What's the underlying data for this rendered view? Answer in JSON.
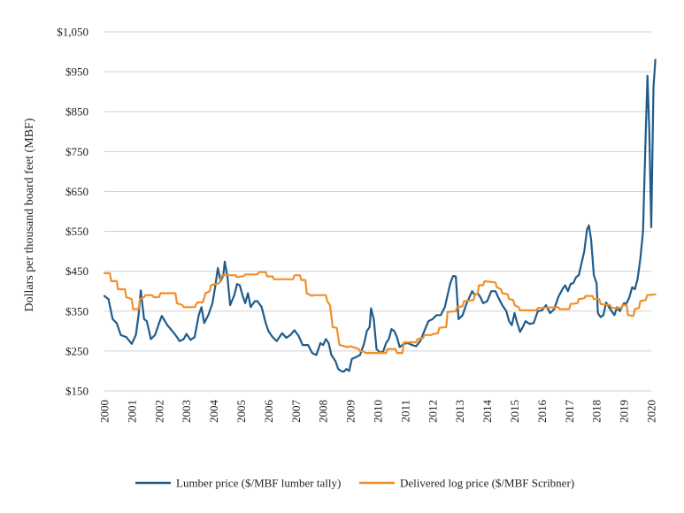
{
  "chart_data": {
    "type": "line",
    "title": "",
    "xlabel": "",
    "ylabel": "Dollars per thousand board feet (MBF)",
    "xlim": [
      2000,
      2020
    ],
    "ylim": [
      150,
      1050
    ],
    "yticks": [
      150,
      250,
      350,
      450,
      550,
      650,
      750,
      850,
      950,
      1050
    ],
    "ytick_labels": [
      "$150",
      "$250",
      "$350",
      "$450",
      "$550",
      "$650",
      "$750",
      "$850",
      "$950",
      "$1,050"
    ],
    "xticks": [
      2000,
      2001,
      2002,
      2003,
      2004,
      2005,
      2006,
      2007,
      2008,
      2009,
      2010,
      2011,
      2012,
      2013,
      2014,
      2015,
      2016,
      2017,
      2018,
      2019,
      2020
    ],
    "xtick_labels": [
      "2000",
      "2001",
      "2002",
      "2003",
      "2004",
      "2005",
      "2006",
      "2007",
      "2008",
      "2009",
      "2010",
      "2011",
      "2012",
      "2013",
      "2014",
      "2015",
      "2016",
      "2017",
      "2018",
      "2019",
      "2020"
    ],
    "grid": "horizontal",
    "legend_position": "bottom",
    "series": [
      {
        "name": "Lumber price ($/MBF lumber tally)",
        "color": "#1f5c8b",
        "points": [
          [
            2000.0,
            388
          ],
          [
            2000.15,
            380
          ],
          [
            2000.3,
            330
          ],
          [
            2000.45,
            320
          ],
          [
            2000.6,
            290
          ],
          [
            2000.8,
            285
          ],
          [
            2001.0,
            268
          ],
          [
            2001.15,
            290
          ],
          [
            2001.25,
            340
          ],
          [
            2001.33,
            402
          ],
          [
            2001.45,
            330
          ],
          [
            2001.55,
            325
          ],
          [
            2001.7,
            280
          ],
          [
            2001.85,
            290
          ],
          [
            2002.0,
            320
          ],
          [
            2002.1,
            338
          ],
          [
            2002.3,
            315
          ],
          [
            2002.45,
            303
          ],
          [
            2002.6,
            290
          ],
          [
            2002.75,
            275
          ],
          [
            2002.9,
            280
          ],
          [
            2003.0,
            293
          ],
          [
            2003.15,
            278
          ],
          [
            2003.3,
            285
          ],
          [
            2003.45,
            340
          ],
          [
            2003.55,
            360
          ],
          [
            2003.65,
            320
          ],
          [
            2003.8,
            340
          ],
          [
            2003.95,
            370
          ],
          [
            2004.05,
            410
          ],
          [
            2004.15,
            458
          ],
          [
            2004.25,
            425
          ],
          [
            2004.35,
            440
          ],
          [
            2004.4,
            474
          ],
          [
            2004.5,
            435
          ],
          [
            2004.6,
            365
          ],
          [
            2004.75,
            390
          ],
          [
            2004.85,
            418
          ],
          [
            2004.95,
            415
          ],
          [
            2005.05,
            390
          ],
          [
            2005.15,
            370
          ],
          [
            2005.25,
            395
          ],
          [
            2005.35,
            360
          ],
          [
            2005.5,
            375
          ],
          [
            2005.6,
            375
          ],
          [
            2005.75,
            360
          ],
          [
            2005.9,
            320
          ],
          [
            2006.0,
            300
          ],
          [
            2006.15,
            285
          ],
          [
            2006.3,
            275
          ],
          [
            2006.5,
            295
          ],
          [
            2006.65,
            283
          ],
          [
            2006.8,
            290
          ],
          [
            2006.95,
            302
          ],
          [
            2007.1,
            288
          ],
          [
            2007.25,
            265
          ],
          [
            2007.45,
            265
          ],
          [
            2007.6,
            245
          ],
          [
            2007.75,
            240
          ],
          [
            2007.9,
            270
          ],
          [
            2008.0,
            265
          ],
          [
            2008.1,
            280
          ],
          [
            2008.2,
            270
          ],
          [
            2008.3,
            240
          ],
          [
            2008.45,
            225
          ],
          [
            2008.55,
            205
          ],
          [
            2008.65,
            200
          ],
          [
            2008.75,
            198
          ],
          [
            2008.85,
            205
          ],
          [
            2008.95,
            200
          ],
          [
            2009.05,
            230
          ],
          [
            2009.2,
            235
          ],
          [
            2009.35,
            240
          ],
          [
            2009.5,
            270
          ],
          [
            2009.6,
            300
          ],
          [
            2009.7,
            310
          ],
          [
            2009.75,
            357
          ],
          [
            2009.85,
            330
          ],
          [
            2009.95,
            255
          ],
          [
            2010.1,
            245
          ],
          [
            2010.2,
            250
          ],
          [
            2010.3,
            270
          ],
          [
            2010.4,
            280
          ],
          [
            2010.5,
            305
          ],
          [
            2010.6,
            300
          ],
          [
            2010.7,
            285
          ],
          [
            2010.8,
            260
          ],
          [
            2010.95,
            268
          ],
          [
            2011.1,
            270
          ],
          [
            2011.25,
            265
          ],
          [
            2011.4,
            262
          ],
          [
            2011.55,
            275
          ],
          [
            2011.7,
            300
          ],
          [
            2011.85,
            325
          ],
          [
            2012.0,
            330
          ],
          [
            2012.15,
            340
          ],
          [
            2012.3,
            340
          ],
          [
            2012.45,
            360
          ],
          [
            2012.55,
            390
          ],
          [
            2012.65,
            420
          ],
          [
            2012.75,
            438
          ],
          [
            2012.85,
            437
          ],
          [
            2012.95,
            330
          ],
          [
            2013.1,
            340
          ],
          [
            2013.25,
            370
          ],
          [
            2013.35,
            385
          ],
          [
            2013.45,
            400
          ],
          [
            2013.55,
            390
          ],
          [
            2013.65,
            395
          ],
          [
            2013.75,
            385
          ],
          [
            2013.85,
            370
          ],
          [
            2014.0,
            375
          ],
          [
            2014.15,
            400
          ],
          [
            2014.3,
            400
          ],
          [
            2014.4,
            385
          ],
          [
            2014.55,
            365
          ],
          [
            2014.7,
            350
          ],
          [
            2014.8,
            325
          ],
          [
            2014.9,
            315
          ],
          [
            2015.0,
            345
          ],
          [
            2015.1,
            320
          ],
          [
            2015.2,
            298
          ],
          [
            2015.3,
            310
          ],
          [
            2015.4,
            325
          ],
          [
            2015.55,
            318
          ],
          [
            2015.7,
            320
          ],
          [
            2015.85,
            350
          ],
          [
            2016.0,
            352
          ],
          [
            2016.15,
            365
          ],
          [
            2016.3,
            345
          ],
          [
            2016.45,
            355
          ],
          [
            2016.6,
            385
          ],
          [
            2016.75,
            405
          ],
          [
            2016.85,
            415
          ],
          [
            2016.95,
            400
          ],
          [
            2017.05,
            418
          ],
          [
            2017.15,
            420
          ],
          [
            2017.25,
            435
          ],
          [
            2017.35,
            440
          ],
          [
            2017.45,
            470
          ],
          [
            2017.55,
            500
          ],
          [
            2017.65,
            555
          ],
          [
            2017.72,
            565
          ],
          [
            2017.8,
            530
          ],
          [
            2017.9,
            440
          ],
          [
            2018.0,
            420
          ],
          [
            2018.05,
            345
          ],
          [
            2018.15,
            335
          ],
          [
            2018.25,
            340
          ],
          [
            2018.35,
            372
          ],
          [
            2018.5,
            355
          ],
          [
            2018.65,
            340
          ],
          [
            2018.75,
            360
          ],
          [
            2018.85,
            350
          ],
          [
            2019.0,
            370
          ],
          [
            2019.1,
            370
          ],
          [
            2019.2,
            385
          ],
          [
            2019.3,
            410
          ],
          [
            2019.4,
            405
          ],
          [
            2019.5,
            430
          ],
          [
            2019.6,
            480
          ],
          [
            2019.7,
            550
          ],
          [
            2019.8,
            800
          ],
          [
            2019.86,
            940
          ],
          [
            2019.93,
            800
          ],
          [
            2020.0,
            560
          ],
          [
            2020.08,
            910
          ],
          [
            2020.15,
            980
          ]
        ]
      },
      {
        "name": "Delivered log price ($/MBF Scribner)",
        "color": "#f28e2b",
        "points": [
          [
            2000.0,
            445
          ],
          [
            2000.2,
            445
          ],
          [
            2000.25,
            425
          ],
          [
            2000.45,
            425
          ],
          [
            2000.5,
            405
          ],
          [
            2000.75,
            405
          ],
          [
            2000.8,
            385
          ],
          [
            2001.0,
            380
          ],
          [
            2001.05,
            355
          ],
          [
            2001.25,
            355
          ],
          [
            2001.3,
            380
          ],
          [
            2001.45,
            385
          ],
          [
            2001.5,
            390
          ],
          [
            2001.75,
            390
          ],
          [
            2001.8,
            385
          ],
          [
            2002.0,
            385
          ],
          [
            2002.05,
            395
          ],
          [
            2002.6,
            395
          ],
          [
            2002.65,
            370
          ],
          [
            2002.85,
            365
          ],
          [
            2002.9,
            360
          ],
          [
            2003.3,
            360
          ],
          [
            2003.4,
            372
          ],
          [
            2003.6,
            372
          ],
          [
            2003.7,
            395
          ],
          [
            2003.85,
            400
          ],
          [
            2003.9,
            415
          ],
          [
            2004.2,
            420
          ],
          [
            2004.3,
            440
          ],
          [
            2004.8,
            440
          ],
          [
            2004.85,
            435
          ],
          [
            2005.1,
            438
          ],
          [
            2005.15,
            442
          ],
          [
            2005.6,
            442
          ],
          [
            2005.65,
            448
          ],
          [
            2005.9,
            448
          ],
          [
            2005.95,
            437
          ],
          [
            2006.15,
            437
          ],
          [
            2006.2,
            430
          ],
          [
            2006.9,
            430
          ],
          [
            2006.95,
            440
          ],
          [
            2007.15,
            440
          ],
          [
            2007.2,
            428
          ],
          [
            2007.35,
            428
          ],
          [
            2007.4,
            395
          ],
          [
            2007.6,
            388
          ],
          [
            2007.65,
            390
          ],
          [
            2008.1,
            390
          ],
          [
            2008.15,
            375
          ],
          [
            2008.25,
            365
          ],
          [
            2008.35,
            310
          ],
          [
            2008.5,
            308
          ],
          [
            2008.6,
            265
          ],
          [
            2008.9,
            260
          ],
          [
            2009.0,
            262
          ],
          [
            2009.3,
            255
          ],
          [
            2009.35,
            250
          ],
          [
            2009.5,
            248
          ],
          [
            2009.55,
            245
          ],
          [
            2010.3,
            245
          ],
          [
            2010.35,
            255
          ],
          [
            2010.65,
            255
          ],
          [
            2010.7,
            245
          ],
          [
            2010.9,
            245
          ],
          [
            2010.95,
            272
          ],
          [
            2011.4,
            272
          ],
          [
            2011.45,
            280
          ],
          [
            2011.65,
            282
          ],
          [
            2011.7,
            290
          ],
          [
            2011.95,
            290
          ],
          [
            2012.0,
            292
          ],
          [
            2012.2,
            295
          ],
          [
            2012.25,
            308
          ],
          [
            2012.5,
            310
          ],
          [
            2012.55,
            348
          ],
          [
            2012.85,
            350
          ],
          [
            2012.9,
            360
          ],
          [
            2013.1,
            362
          ],
          [
            2013.15,
            375
          ],
          [
            2013.5,
            378
          ],
          [
            2013.55,
            390
          ],
          [
            2013.65,
            395
          ],
          [
            2013.7,
            415
          ],
          [
            2013.85,
            415
          ],
          [
            2013.9,
            425
          ],
          [
            2014.3,
            422
          ],
          [
            2014.35,
            410
          ],
          [
            2014.5,
            405
          ],
          [
            2014.55,
            395
          ],
          [
            2014.75,
            392
          ],
          [
            2014.8,
            380
          ],
          [
            2014.95,
            378
          ],
          [
            2015.0,
            365
          ],
          [
            2015.15,
            360
          ],
          [
            2015.2,
            352
          ],
          [
            2015.8,
            352
          ],
          [
            2015.85,
            358
          ],
          [
            2016.6,
            360
          ],
          [
            2016.65,
            355
          ],
          [
            2017.0,
            355
          ],
          [
            2017.05,
            368
          ],
          [
            2017.3,
            370
          ],
          [
            2017.35,
            380
          ],
          [
            2017.55,
            382
          ],
          [
            2017.6,
            388
          ],
          [
            2017.85,
            388
          ],
          [
            2017.9,
            380
          ],
          [
            2018.1,
            380
          ],
          [
            2018.15,
            368
          ],
          [
            2018.5,
            365
          ],
          [
            2018.55,
            358
          ],
          [
            2018.9,
            358
          ],
          [
            2018.95,
            365
          ],
          [
            2019.1,
            365
          ],
          [
            2019.15,
            340
          ],
          [
            2019.35,
            338
          ],
          [
            2019.4,
            355
          ],
          [
            2019.55,
            358
          ],
          [
            2019.6,
            375
          ],
          [
            2019.8,
            378
          ],
          [
            2019.85,
            390
          ],
          [
            2020.15,
            392
          ]
        ]
      }
    ]
  }
}
